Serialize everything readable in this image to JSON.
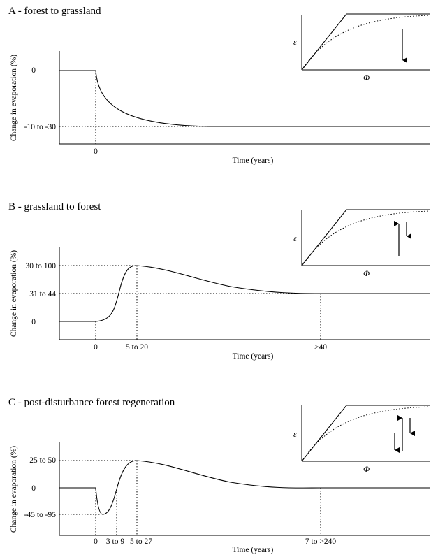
{
  "panels": [
    {
      "id": "a",
      "title": "A - forest to grassland",
      "ylabel": "Change in evaporation (%)",
      "xlabel": "Time (years)",
      "y_ticks": [
        "0",
        "-10 to -30"
      ],
      "x_ticks": [
        "0"
      ],
      "inset": {
        "ylabel": "ε",
        "xlabel": "Φ",
        "arrows": [
          "down"
        ]
      }
    },
    {
      "id": "b",
      "title": "B - grassland to forest",
      "ylabel": "Change in evaporation (%)",
      "xlabel": "Time (years)",
      "y_ticks": [
        "30 to 100",
        "31 to 44",
        "0"
      ],
      "x_ticks": [
        "0",
        "5 to 20",
        ">40"
      ],
      "inset": {
        "ylabel": "ε",
        "xlabel": "Φ",
        "arrows": [
          "up",
          "down"
        ]
      }
    },
    {
      "id": "c",
      "title": "C - post-disturbance forest regeneration",
      "ylabel": "Change in evaporation (%)",
      "xlabel": "Time (years)",
      "y_ticks": [
        "25 to 50",
        "0",
        "-45 to -95"
      ],
      "x_ticks": [
        "0",
        "3 to 9",
        "5 to 27",
        "7 to >240"
      ],
      "inset": {
        "ylabel": "ε",
        "xlabel": "Φ",
        "arrows": [
          "down",
          "up",
          "down"
        ]
      }
    }
  ]
}
